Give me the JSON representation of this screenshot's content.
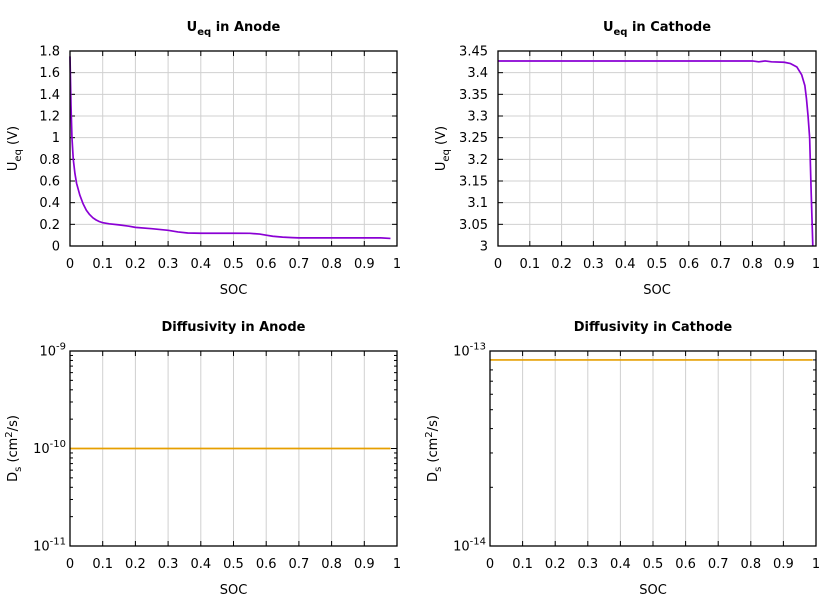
{
  "chart_data": [
    {
      "id": "anode-ueq",
      "type": "line",
      "title_main": "U",
      "title_sub": "eq",
      "title_rest": " in Anode",
      "xlabel": "SOC",
      "ylabel_main": "U",
      "ylabel_sub": "eq",
      "ylabel_rest": " (V)",
      "xlim": [
        0,
        1
      ],
      "ylim": [
        0,
        1.8
      ],
      "xticks": [
        "0",
        "0.1",
        "0.2",
        "0.3",
        "0.4",
        "0.5",
        "0.6",
        "0.7",
        "0.8",
        "0.9",
        "1"
      ],
      "yticks": [
        "0",
        "0.2",
        "0.4",
        "0.6",
        "0.8",
        "1",
        "1.2",
        "1.4",
        "1.6",
        "1.8"
      ],
      "grid": true,
      "color": "#8a00d4",
      "series": [
        {
          "x": [
            0,
            0.003,
            0.006,
            0.01,
            0.015,
            0.02,
            0.03,
            0.04,
            0.05,
            0.06,
            0.07,
            0.08,
            0.09,
            0.1,
            0.12,
            0.15,
            0.18,
            0.2,
            0.25,
            0.3,
            0.33,
            0.36,
            0.4,
            0.45,
            0.5,
            0.55,
            0.58,
            0.6,
            0.62,
            0.65,
            0.68,
            0.7,
            0.8,
            0.9,
            0.95,
            0.98
          ],
          "y": [
            1.75,
            1.3,
            1.0,
            0.8,
            0.67,
            0.58,
            0.47,
            0.39,
            0.33,
            0.29,
            0.26,
            0.24,
            0.225,
            0.215,
            0.205,
            0.195,
            0.183,
            0.172,
            0.16,
            0.145,
            0.13,
            0.12,
            0.118,
            0.118,
            0.118,
            0.117,
            0.11,
            0.1,
            0.09,
            0.082,
            0.077,
            0.075,
            0.075,
            0.075,
            0.075,
            0.07
          ]
        }
      ]
    },
    {
      "id": "cathode-ueq",
      "type": "line",
      "title_main": "U",
      "title_sub": "eq",
      "title_rest": " in Cathode",
      "xlabel": "SOC",
      "ylabel_main": "U",
      "ylabel_sub": "eq",
      "ylabel_rest": " (V)",
      "xlim": [
        0,
        1
      ],
      "ylim": [
        3,
        3.45
      ],
      "xticks": [
        "0",
        "0.1",
        "0.2",
        "0.3",
        "0.4",
        "0.5",
        "0.6",
        "0.7",
        "0.8",
        "0.9",
        "1"
      ],
      "yticks": [
        "3",
        "3.05",
        "3.1",
        "3.15",
        "3.2",
        "3.25",
        "3.3",
        "3.35",
        "3.4",
        "3.45"
      ],
      "grid": true,
      "color": "#8a00d4",
      "series": [
        {
          "x": [
            0,
            0.1,
            0.2,
            0.3,
            0.4,
            0.5,
            0.6,
            0.7,
            0.8,
            0.82,
            0.84,
            0.86,
            0.9,
            0.92,
            0.94,
            0.955,
            0.965,
            0.97,
            0.975,
            0.98,
            0.985,
            0.99
          ],
          "y": [
            3.427,
            3.427,
            3.427,
            3.427,
            3.427,
            3.427,
            3.427,
            3.427,
            3.427,
            3.425,
            3.427,
            3.425,
            3.424,
            3.421,
            3.413,
            3.395,
            3.37,
            3.34,
            3.3,
            3.25,
            3.12,
            3.0
          ]
        }
      ]
    },
    {
      "id": "anode-diffusivity",
      "type": "line",
      "title": "Diffusivity in Anode",
      "xlabel": "SOC",
      "ylabel_main": "D",
      "ylabel_sub": "s",
      "ylabel_pre": " (cm",
      "ylabel_sup": "2",
      "ylabel_post": "/s)",
      "yscale": "log",
      "xlim": [
        0,
        1
      ],
      "ylim_exp": [
        -11,
        -9
      ],
      "xticks": [
        "0",
        "0.1",
        "0.2",
        "0.3",
        "0.4",
        "0.5",
        "0.6",
        "0.7",
        "0.8",
        "0.9",
        "1"
      ],
      "ytick_base": "10",
      "ytick_exps": [
        "-11",
        "-10",
        "-9"
      ],
      "grid": true,
      "color": "#e69f00",
      "series": [
        {
          "x": [
            0,
            0.98
          ],
          "y": [
            1e-10,
            1e-10
          ]
        }
      ]
    },
    {
      "id": "cathode-diffusivity",
      "type": "line",
      "title": "Diffusivity in Cathode",
      "xlabel": "SOC",
      "ylabel_main": "D",
      "ylabel_sub": "s",
      "ylabel_pre": " (cm",
      "ylabel_sup": "2",
      "ylabel_post": "/s)",
      "yscale": "log",
      "xlim": [
        0,
        1
      ],
      "ylim_exp": [
        -14,
        -13
      ],
      "xticks": [
        "0",
        "0.1",
        "0.2",
        "0.3",
        "0.4",
        "0.5",
        "0.6",
        "0.7",
        "0.8",
        "0.9",
        "1"
      ],
      "ytick_base": "10",
      "ytick_exps": [
        "-14",
        "-13"
      ],
      "grid": true,
      "color": "#e69f00",
      "series": [
        {
          "x": [
            0,
            0.99
          ],
          "y": [
            9e-14,
            9e-14
          ]
        }
      ]
    }
  ]
}
